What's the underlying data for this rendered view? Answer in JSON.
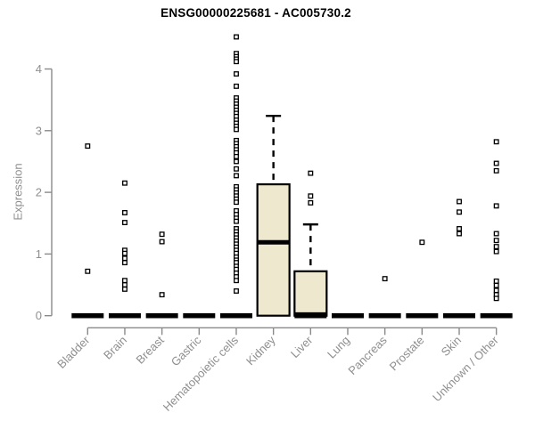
{
  "chart_data": {
    "type": "boxplot",
    "title": "ENSG00000225681 - AC005730.2",
    "ylabel": "Expression",
    "xlabel": "",
    "ylim": [
      0,
      4.6
    ],
    "yticks": [
      0,
      1,
      2,
      3,
      4
    ],
    "grid": false,
    "legend": "none",
    "marker": "open-square",
    "box_fill_color": "#EDE8CE",
    "box_border_color": "#000000",
    "zero_bar_color": "#000000",
    "axis_color": "#8A8A8A",
    "label_color": "#8F8F8F",
    "title_color": "#000000",
    "categories": [
      {
        "label": "Bladder",
        "zero_bar": true,
        "box": null,
        "points": [
          2.75,
          0.72
        ]
      },
      {
        "label": "Brain",
        "zero_bar": true,
        "box": null,
        "points": [
          2.15,
          1.67,
          1.51,
          1.06,
          1.01,
          0.93,
          0.86,
          0.57,
          0.5,
          0.43
        ]
      },
      {
        "label": "Breast",
        "zero_bar": true,
        "box": null,
        "points": [
          1.32,
          1.2,
          0.34
        ]
      },
      {
        "label": "Gastric",
        "zero_bar": true,
        "box": null,
        "points": []
      },
      {
        "label": "Hematopoietic cells",
        "zero_bar": true,
        "box": null,
        "points": [
          4.52,
          4.25,
          4.2,
          4.16,
          4.12,
          3.92,
          3.72,
          3.53,
          3.48,
          3.43,
          3.38,
          3.33,
          3.28,
          3.23,
          3.17,
          3.12,
          3.07,
          3.02,
          2.84,
          2.79,
          2.74,
          2.69,
          2.64,
          2.58,
          2.5,
          2.38,
          2.27,
          2.09,
          2.04,
          1.99,
          1.94,
          1.89,
          1.84,
          1.7,
          1.64,
          1.58,
          1.53,
          1.41,
          1.36,
          1.31,
          1.26,
          1.21,
          1.16,
          1.11,
          1.06,
          1.01,
          0.95,
          0.9,
          0.86,
          0.8,
          0.75,
          0.69,
          0.63,
          0.57,
          0.4
        ]
      },
      {
        "label": "Kidney",
        "zero_bar": false,
        "box": {
          "q1": 0,
          "median": 1.19,
          "q3": 2.13,
          "whisker_high": 3.24
        },
        "points": []
      },
      {
        "label": "Liver",
        "zero_bar": true,
        "box": {
          "q1": 0,
          "median": 0.02,
          "q3": 0.72,
          "whisker_high": 1.48
        },
        "points": [
          2.31,
          1.94,
          1.83
        ]
      },
      {
        "label": "Lung",
        "zero_bar": true,
        "box": null,
        "points": []
      },
      {
        "label": "Pancreas",
        "zero_bar": true,
        "box": null,
        "points": [
          0.6
        ]
      },
      {
        "label": "Prostate",
        "zero_bar": true,
        "box": null,
        "points": [
          1.19
        ]
      },
      {
        "label": "Skin",
        "zero_bar": true,
        "box": null,
        "points": [
          1.85,
          1.68,
          1.41,
          1.33
        ]
      },
      {
        "label": "Unknown / Other",
        "zero_bar": true,
        "box": null,
        "points": [
          2.82,
          2.47,
          2.35,
          1.78,
          1.33,
          1.22,
          1.12,
          1.04,
          0.56,
          0.49,
          0.41,
          0.34,
          0.28
        ]
      }
    ]
  }
}
